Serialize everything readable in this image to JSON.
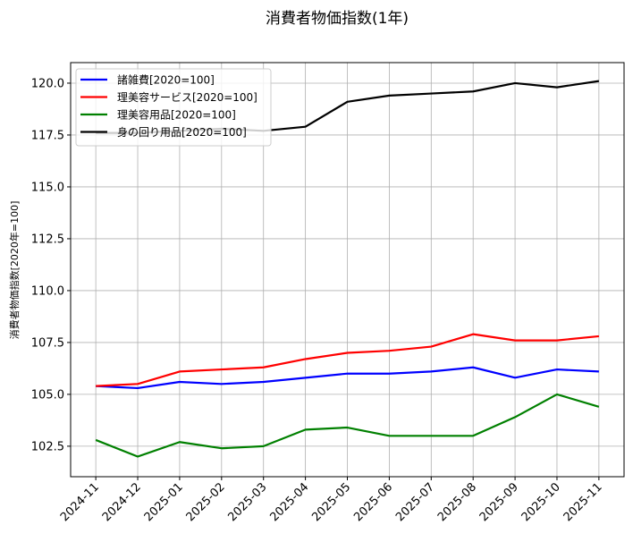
{
  "chart_data": {
    "type": "line",
    "title": "消費者物価指数(1年)",
    "xlabel": "",
    "ylabel": "消費者物価指数[2020年=100]",
    "categories": [
      "2024-11",
      "2024-12",
      "2025-01",
      "2025-02",
      "2025-03",
      "2025-04",
      "2025-05",
      "2025-06",
      "2025-07",
      "2025-08",
      "2025-09",
      "2025-10",
      "2025-11"
    ],
    "ylim": [
      101.03,
      120.99
    ],
    "yticks": [
      "102.5",
      "105.0",
      "107.5",
      "110.0",
      "112.5",
      "115.0",
      "117.5",
      "120.0"
    ],
    "grid": true,
    "legend_position": "top-left",
    "series": [
      {
        "name": "諸雑費[2020=100]",
        "color": "#0000ff",
        "values": [
          105.4,
          105.3,
          105.6,
          105.5,
          105.6,
          105.8,
          106.0,
          106.0,
          106.1,
          106.3,
          105.8,
          106.2,
          106.1
        ]
      },
      {
        "name": "理美容サービス[2020=100]",
        "color": "#ff0000",
        "values": [
          105.4,
          105.5,
          106.1,
          106.2,
          106.3,
          106.7,
          107.0,
          107.1,
          107.3,
          107.9,
          107.6,
          107.6,
          107.8
        ]
      },
      {
        "name": "理美容用品[2020=100]",
        "color": "#008000",
        "values": [
          102.8,
          102.0,
          102.7,
          102.4,
          102.5,
          103.3,
          103.4,
          103.0,
          103.0,
          103.0,
          103.9,
          105.0,
          104.4
        ]
      },
      {
        "name": "身の回り用品[2020=100]",
        "color": "#000000",
        "values": [
          117.6,
          117.6,
          117.7,
          117.8,
          117.7,
          117.9,
          119.1,
          119.4,
          119.5,
          119.6,
          120.0,
          119.8,
          120.1
        ]
      }
    ]
  }
}
